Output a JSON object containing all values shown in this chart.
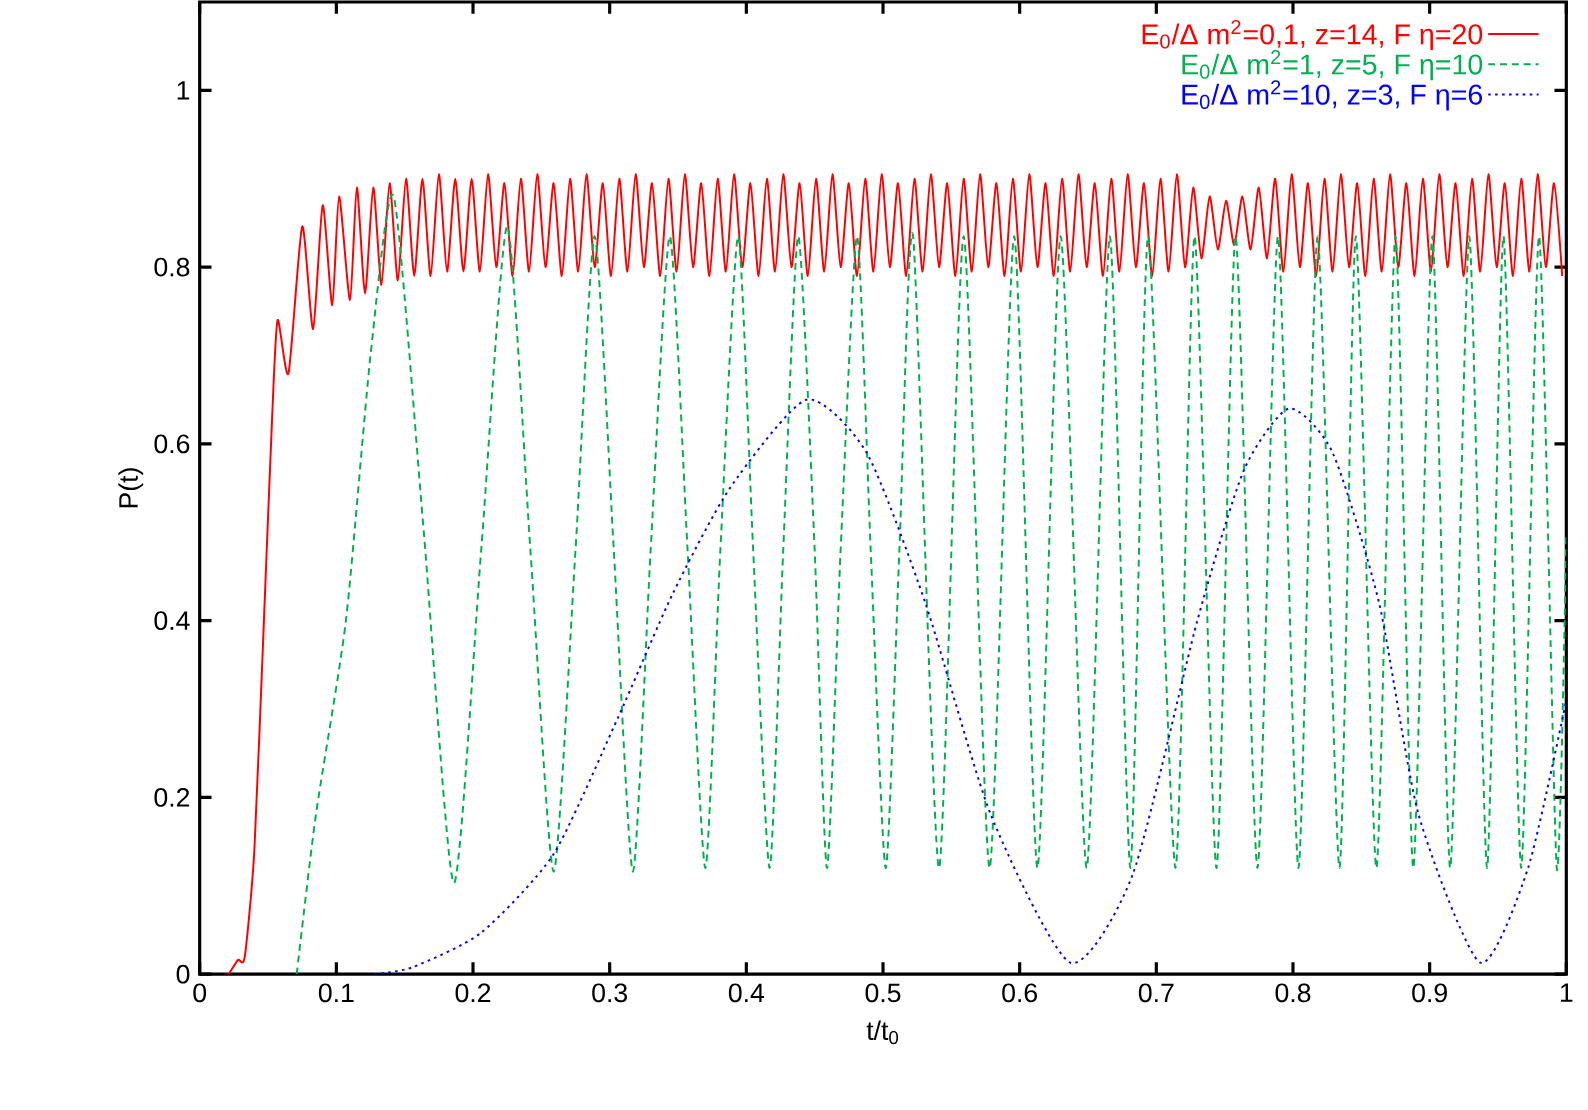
{
  "chart_data": {
    "type": "line",
    "xlabel": "t/t$_{0}$",
    "ylabel": "P(t)",
    "xlim": [
      0,
      1
    ],
    "ylim": [
      0,
      1.1
    ],
    "xticks": [
      0,
      0.1,
      0.2,
      0.3,
      0.4,
      0.5,
      0.6,
      0.7,
      0.8,
      0.9,
      1
    ],
    "yticks": [
      0,
      0.2,
      0.4,
      0.6,
      0.8,
      1
    ],
    "legend": "top right",
    "series": [
      {
        "name": "E$_{0}$/Δ m$^{2}$=0,1, z=14, F η=20",
        "color": "#ff0000",
        "line_style": "solid",
        "x": [
          0.018,
          0.021,
          0.028,
          0.033,
          0.04,
          0.047,
          0.053,
          0.057,
          0.065,
          0.075,
          0.083,
          0.09,
          0.097,
          0.102,
          0.11,
          0.115,
          0.121,
          0.127,
          0.133,
          0.139,
          0.145,
          0.151,
          0.157,
          0.163,
          0.169,
          0.175,
          0.181,
          0.187,
          0.193,
          0.199,
          0.205,
          0.211,
          0.217,
          0.223,
          0.229,
          0.235,
          0.241,
          0.247,
          0.253,
          0.259,
          0.265,
          0.271,
          0.277,
          0.283,
          0.289,
          0.295,
          0.301,
          0.307,
          0.313,
          0.319,
          0.325,
          0.331,
          0.337,
          0.343,
          0.349,
          0.355,
          0.361,
          0.367,
          0.373,
          0.379,
          0.385,
          0.391,
          0.397,
          0.403,
          0.409,
          0.415,
          0.421,
          0.427,
          0.433,
          0.439,
          0.445,
          0.451,
          0.457,
          0.463,
          0.469,
          0.475,
          0.481,
          0.487,
          0.493,
          0.499,
          0.505,
          0.511,
          0.517,
          0.523,
          0.529,
          0.535,
          0.541,
          0.547,
          0.553,
          0.559,
          0.565,
          0.571,
          0.577,
          0.583,
          0.589,
          0.595,
          0.601,
          0.607,
          0.613,
          0.619,
          0.625,
          0.631,
          0.637,
          0.643,
          0.649,
          0.655,
          0.661,
          0.667,
          0.673,
          0.679,
          0.685,
          0.691,
          0.697,
          0.703,
          0.709,
          0.715,
          0.721,
          0.727,
          0.733,
          0.739,
          0.745,
          0.751,
          0.757,
          0.763,
          0.769,
          0.775,
          0.781,
          0.787,
          0.793,
          0.799,
          0.805,
          0.811,
          0.817,
          0.823,
          0.829,
          0.835,
          0.841,
          0.847,
          0.853,
          0.859,
          0.865,
          0.871,
          0.877,
          0.883,
          0.889,
          0.895,
          0.901,
          0.907,
          0.913,
          0.919,
          0.925,
          0.931,
          0.937,
          0.943,
          0.949,
          0.955,
          0.961,
          0.967,
          0.973,
          0.979,
          0.985,
          0.991,
          0.997
        ],
        "values": [
          0,
          0,
          0.016,
          0.02,
          0.14,
          0.4,
          0.63,
          0.74,
          0.68,
          0.846,
          0.73,
          0.87,
          0.757,
          0.88,
          0.763,
          0.89,
          0.77,
          0.89,
          0.78,
          0.895,
          0.785,
          0.9,
          0.79,
          0.9,
          0.79,
          0.905,
          0.795,
          0.9,
          0.795,
          0.9,
          0.795,
          0.905,
          0.8,
          0.895,
          0.79,
          0.9,
          0.795,
          0.905,
          0.8,
          0.895,
          0.79,
          0.9,
          0.795,
          0.905,
          0.8,
          0.895,
          0.79,
          0.9,
          0.795,
          0.905,
          0.8,
          0.895,
          0.79,
          0.9,
          0.795,
          0.905,
          0.8,
          0.895,
          0.79,
          0.9,
          0.795,
          0.905,
          0.8,
          0.895,
          0.79,
          0.9,
          0.795,
          0.905,
          0.8,
          0.895,
          0.79,
          0.9,
          0.795,
          0.905,
          0.8,
          0.895,
          0.79,
          0.9,
          0.795,
          0.905,
          0.8,
          0.895,
          0.79,
          0.9,
          0.795,
          0.905,
          0.8,
          0.895,
          0.79,
          0.9,
          0.795,
          0.905,
          0.8,
          0.895,
          0.79,
          0.9,
          0.795,
          0.905,
          0.8,
          0.895,
          0.79,
          0.9,
          0.795,
          0.905,
          0.8,
          0.895,
          0.79,
          0.9,
          0.795,
          0.905,
          0.8,
          0.895,
          0.79,
          0.9,
          0.795,
          0.905,
          0.8,
          0.89,
          0.81,
          0.88,
          0.82,
          0.875,
          0.825,
          0.88,
          0.82,
          0.89,
          0.81,
          0.9,
          0.795,
          0.905,
          0.8,
          0.895,
          0.79,
          0.9,
          0.795,
          0.905,
          0.8,
          0.895,
          0.79,
          0.9,
          0.795,
          0.905,
          0.8,
          0.895,
          0.79,
          0.9,
          0.795,
          0.905,
          0.8,
          0.895,
          0.79,
          0.9,
          0.795,
          0.905,
          0.8,
          0.895,
          0.79,
          0.9,
          0.795,
          0.905,
          0.8,
          0.895,
          0.79
        ]
      },
      {
        "name": "E$_{0}$/Δ m$^{2}$=1, z=5, F η=10",
        "color": "#00b050",
        "line_style": "dashed",
        "x": [
          0.071,
          0.085,
          0.107,
          0.125,
          0.142,
          0.164,
          0.186,
          0.206,
          0.225,
          0.242,
          0.259,
          0.275,
          0.289,
          0.303,
          0.317,
          0.33,
          0.344,
          0.357,
          0.37,
          0.381,
          0.394,
          0.405,
          0.417,
          0.427,
          0.438,
          0.45,
          0.459,
          0.469,
          0.481,
          0.491,
          0.502,
          0.512,
          0.522,
          0.541,
          0.559,
          0.578,
          0.596,
          0.613,
          0.63,
          0.649,
          0.666,
          0.681,
          0.694,
          0.714,
          0.728,
          0.744,
          0.758,
          0.774,
          0.789,
          0.804,
          0.818,
          0.834,
          0.846,
          0.861,
          0.875,
          0.888,
          0.902,
          0.915,
          0.929,
          0.942,
          0.954,
          0.967,
          0.98,
          0.993,
          1.0
        ],
        "values": [
          0,
          0.18,
          0.4,
          0.7,
          0.88,
          0.5,
          0.103,
          0.48,
          0.846,
          0.48,
          0.116,
          0.48,
          0.835,
          0.48,
          0.116,
          0.48,
          0.835,
          0.48,
          0.12,
          0.48,
          0.835,
          0.48,
          0.12,
          0.48,
          0.835,
          0.48,
          0.12,
          0.48,
          0.835,
          0.48,
          0.12,
          0.48,
          0.835,
          0.12,
          0.835,
          0.12,
          0.835,
          0.12,
          0.835,
          0.12,
          0.835,
          0.12,
          0.835,
          0.12,
          0.835,
          0.12,
          0.835,
          0.12,
          0.835,
          0.12,
          0.835,
          0.12,
          0.835,
          0.12,
          0.835,
          0.12,
          0.835,
          0.12,
          0.835,
          0.12,
          0.835,
          0.12,
          0.835,
          0.12,
          0.5
        ]
      },
      {
        "name": "E$_{0}$/Δ m$^{2}$=10, z=3, F η=6",
        "color": "#0000ff",
        "line_style": "dotted",
        "x": [
          0.128,
          0.156,
          0.206,
          0.259,
          0.306,
          0.346,
          0.388,
          0.444,
          0.488,
          0.531,
          0.579,
          0.637,
          0.683,
          0.73,
          0.764,
          0.797,
          0.829,
          0.863,
          0.892,
          0.937,
          0.972,
          1.0
        ],
        "values": [
          0,
          0.008,
          0.047,
          0.136,
          0.29,
          0.43,
          0.55,
          0.65,
          0.59,
          0.42,
          0.18,
          0.013,
          0.114,
          0.4,
          0.57,
          0.64,
          0.59,
          0.42,
          0.18,
          0.013,
          0.12,
          0.31
        ]
      }
    ]
  }
}
